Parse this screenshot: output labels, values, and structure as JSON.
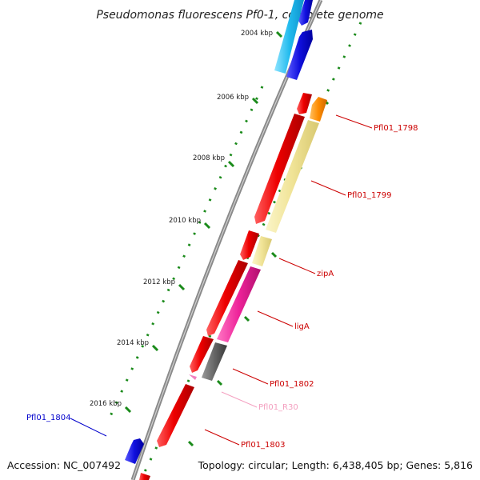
{
  "title": "Pseudomonas fluorescens Pf0-1, complete genome",
  "footer": {
    "accession": "Accession: NC_007492",
    "summary": "Topology: circular; Length: 6,438,405 bp; Genes: 5,816"
  },
  "ticks": [
    {
      "label": "2004 kbp"
    },
    {
      "label": "2006 kbp"
    },
    {
      "label": "2008 kbp"
    },
    {
      "label": "2010 kbp"
    },
    {
      "label": "2012 kbp"
    },
    {
      "label": "2014 kbp"
    },
    {
      "label": "2016 kbp"
    }
  ],
  "gene_labels": [
    {
      "text": "Pfl01_1798",
      "color": "#cc0000"
    },
    {
      "text": "Pfl01_1799",
      "color": "#cc0000"
    },
    {
      "text": "zipA",
      "color": "#cc0000"
    },
    {
      "text": "ligA",
      "color": "#cc0000"
    },
    {
      "text": "Pfl01_1802",
      "color": "#cc0000"
    },
    {
      "text": "Pfl01_R30",
      "color": "#f4a0c0"
    },
    {
      "text": "Pfl01_1803",
      "color": "#cc0000"
    },
    {
      "text": "Pfl01_1804",
      "color": "#0000cc"
    }
  ],
  "colors": {
    "forward_gene": "#ee1111",
    "reverse_gene": "#1111dd",
    "cds_yellow": "#f2e6a0",
    "magenta": "#ee2299",
    "orange": "#ff8c00",
    "grey": "#666666",
    "cyan": "#33ccff",
    "backbone": "#888888",
    "tick_green": "#1a8a1a"
  }
}
